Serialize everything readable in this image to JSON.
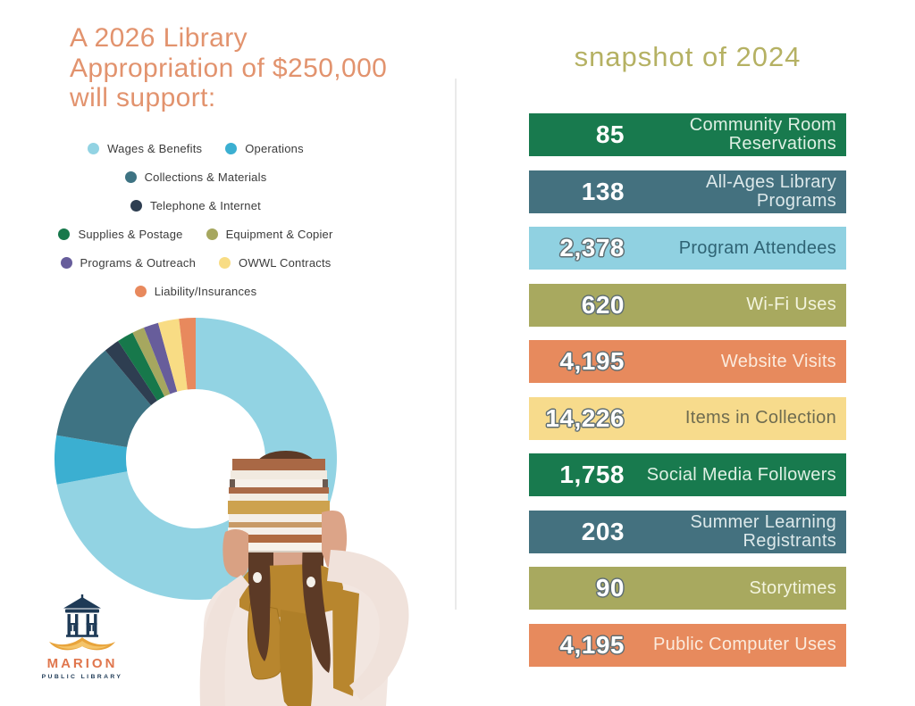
{
  "page": {
    "background": "#FFFFFF",
    "divider_color": "#EAEAEA"
  },
  "left": {
    "title": "A 2026 Library Appropriation of $250,000 will support:",
    "title_color": "#E2936E"
  },
  "right": {
    "title": "snapshot of 2024",
    "title_color": "#B5B163"
  },
  "logo": {
    "name": "MARION",
    "subtitle": "PUBLIC LIBRARY",
    "name_color": "#E0764D",
    "subtitle_color": "#1E3A56",
    "icon": "gazebo-over-open-book"
  },
  "chart_data": [
    {
      "type": "pie",
      "donut": true,
      "title": "A 2026 Library Appropriation of $250,000 will support:",
      "direction": "clockwise",
      "start_angle_deg_from_top": 0,
      "labels": [
        "Wages & Benefits",
        "Operations",
        "Collections & Materials",
        "Telephone & Internet",
        "Supplies & Postage",
        "Equipment & Copier",
        "Programs & Outreach",
        "OWWL Contracts",
        "Liability/Insurances"
      ],
      "values": [
        72.3,
        5.6,
        11.3,
        1.8,
        1.9,
        1.4,
        1.7,
        2.4,
        1.9
      ],
      "values_are": "percent_of_whole_estimated_from_arc_angles",
      "colors": [
        "#92D3E3",
        "#3BAFD1",
        "#3E7383",
        "#2E3E51",
        "#17784B",
        "#A6A75F",
        "#675D9B",
        "#F8DC84",
        "#E8895D"
      ],
      "legend_rows": [
        [
          0,
          1
        ],
        [
          2
        ],
        [
          3
        ],
        [
          4,
          5
        ],
        [
          6,
          7
        ],
        [
          8
        ]
      ],
      "legend_position": "above"
    },
    {
      "type": "bar",
      "title": "snapshot of 2024",
      "orientation": "horizontal-stat-list",
      "categories": [
        "Community Room Reservations",
        "All-Ages Library Programs",
        "Program Attendees",
        "Wi-Fi Uses",
        "Website Visits",
        "Items in Collection",
        "Social Media Followers",
        "Summer Learning Registrants",
        "Storytimes",
        "Public Computer Uses"
      ],
      "values": [
        85,
        138,
        2378,
        620,
        4195,
        14226,
        1758,
        203,
        90,
        4195
      ],
      "bars": [
        {
          "value_label": "85",
          "label_lines": [
            "Community Room",
            "Reservations"
          ],
          "bar_color": "#187A4E",
          "label_color": "#DFF0E4",
          "number_outlined": false
        },
        {
          "value_label": "138",
          "label_lines": [
            "All-Ages Library Programs"
          ],
          "bar_color": "#44717F",
          "label_color": "#DCE8EA",
          "number_outlined": false
        },
        {
          "value_label": "2,378",
          "label_lines": [
            "Program Attendees"
          ],
          "bar_color": "#90D1E1",
          "label_color": "#2F6374",
          "number_outlined": true
        },
        {
          "value_label": "620",
          "label_lines": [
            "Wi-Fi Uses"
          ],
          "bar_color": "#A8A95F",
          "label_color": "#F3F4DE",
          "number_outlined": true
        },
        {
          "value_label": "4,195",
          "label_lines": [
            "Website Visits"
          ],
          "bar_color": "#E78A5D",
          "label_color": "#FBEBDD",
          "number_outlined": true
        },
        {
          "value_label": "14,226",
          "label_lines": [
            "Items in Collection"
          ],
          "bar_color": "#F7DB8C",
          "label_color": "#6F6C50",
          "number_outlined": true
        },
        {
          "value_label": "1,758",
          "label_lines": [
            "Social Media Followers"
          ],
          "bar_color": "#187A4E",
          "label_color": "#DFF0E4",
          "number_outlined": false
        },
        {
          "value_label": "203",
          "label_lines": [
            "Summer Learning",
            "Registrants"
          ],
          "bar_color": "#44717F",
          "label_color": "#DCE8EA",
          "number_outlined": false
        },
        {
          "value_label": "90",
          "label_lines": [
            "Storytimes"
          ],
          "bar_color": "#A8A95F",
          "label_color": "#F3F4DE",
          "number_outlined": true
        },
        {
          "value_label": "4,195",
          "label_lines": [
            "Public Computer Uses"
          ],
          "bar_color": "#E78A5D",
          "label_color": "#FBEBDD",
          "number_outlined": true
        }
      ]
    }
  ]
}
